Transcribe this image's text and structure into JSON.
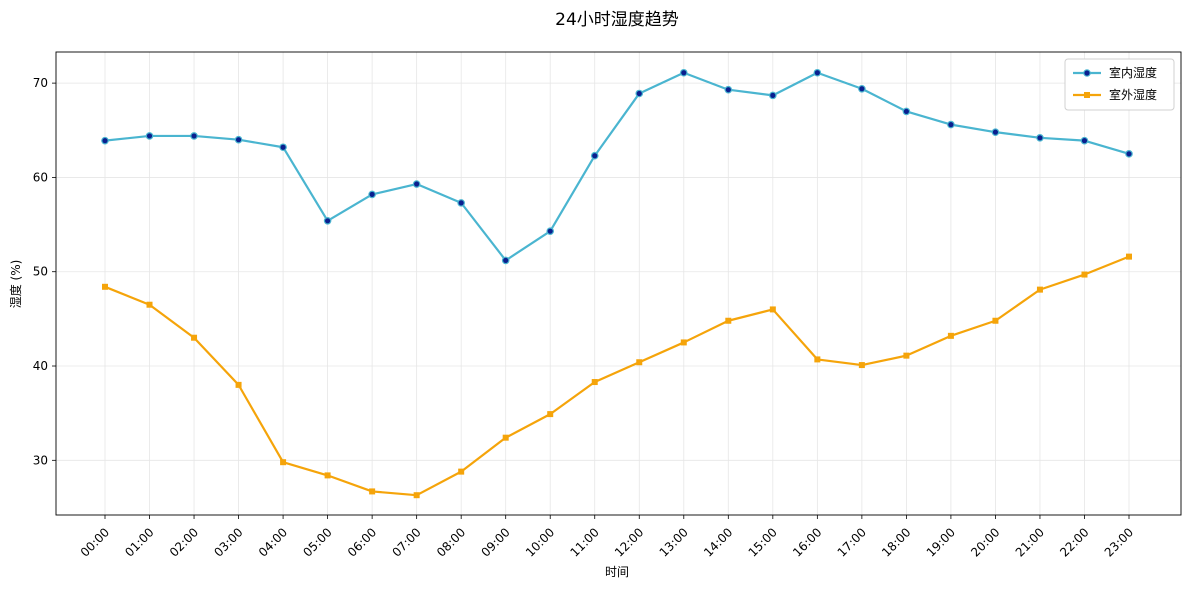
{
  "chart_data": {
    "type": "line",
    "title": "24小时湿度趋势",
    "xlabel": "时间",
    "ylabel": "湿度 (%)",
    "categories": [
      "00:00",
      "01:00",
      "02:00",
      "03:00",
      "04:00",
      "05:00",
      "06:00",
      "07:00",
      "08:00",
      "09:00",
      "10:00",
      "11:00",
      "12:00",
      "13:00",
      "14:00",
      "15:00",
      "16:00",
      "17:00",
      "18:00",
      "19:00",
      "20:00",
      "21:00",
      "22:00",
      "23:00"
    ],
    "ylim": [
      24.2,
      73.3
    ],
    "yticks": [
      30,
      40,
      50,
      60,
      70
    ],
    "grid": true,
    "legend_position": "top-right",
    "series": [
      {
        "name": "室内湿度",
        "color": "#4ab5d0",
        "marker": "circle",
        "marker_color": "#0a1f8f",
        "values": [
          63.9,
          64.4,
          64.4,
          64.0,
          63.2,
          55.4,
          58.2,
          59.3,
          57.3,
          51.2,
          54.3,
          62.3,
          68.9,
          71.1,
          69.3,
          68.7,
          71.1,
          69.4,
          67.0,
          65.6,
          64.8,
          64.2,
          63.9,
          62.5
        ]
      },
      {
        "name": "室外湿度",
        "color": "#f5a40a",
        "marker": "square",
        "marker_color": "#f5a40a",
        "values": [
          48.4,
          46.5,
          43.0,
          38.0,
          29.8,
          28.4,
          26.7,
          26.3,
          28.8,
          32.4,
          34.9,
          38.3,
          40.4,
          42.5,
          44.8,
          46.0,
          40.7,
          40.1,
          41.1,
          43.2,
          44.8,
          48.1,
          49.7,
          51.6
        ]
      }
    ]
  }
}
